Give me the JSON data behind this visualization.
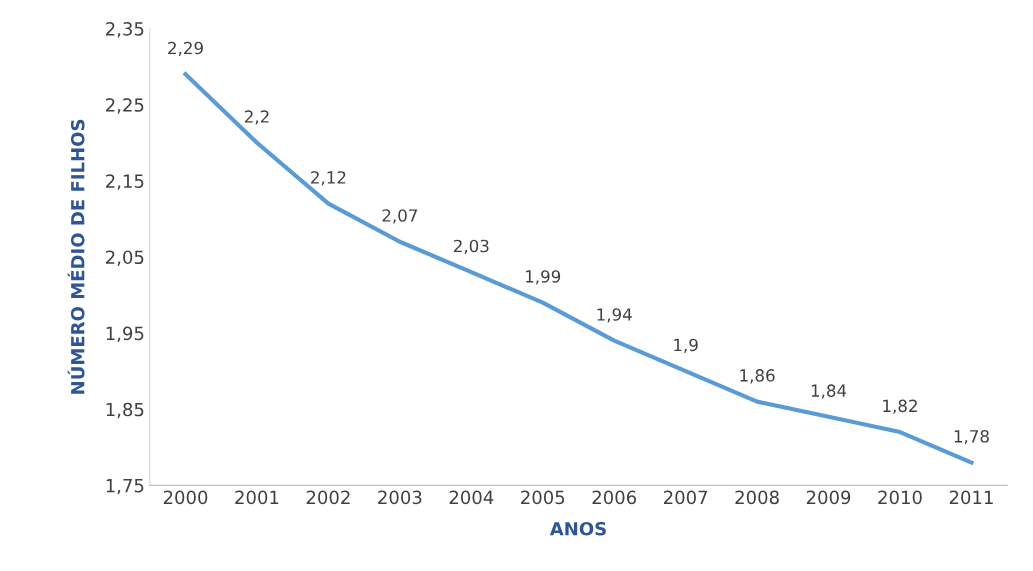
{
  "chart_data": {
    "type": "line",
    "xlabel": "ANOS",
    "ylabel": "NÚMERO MÉDIO DE FILHOS",
    "categories": [
      "2000",
      "2001",
      "2002",
      "2003",
      "2004",
      "2005",
      "2006",
      "2007",
      "2008",
      "2009",
      "2010",
      "2011"
    ],
    "series": [
      {
        "color": "#5b9bd5",
        "values": [
          2.29,
          2.2,
          2.12,
          2.07,
          2.03,
          1.99,
          1.94,
          1.9,
          1.86,
          1.84,
          1.82,
          1.78
        ],
        "value_labels": [
          "2,29",
          "2,2",
          "2,12",
          "2,07",
          "2,03",
          "1,99",
          "1,94",
          "1,9",
          "1,86",
          "1,84",
          "1,82",
          "1,78"
        ]
      }
    ],
    "ylim": [
      1.75,
      2.35
    ],
    "yticks": [
      {
        "value": 1.75,
        "label": "1,75"
      },
      {
        "value": 1.85,
        "label": "1,85"
      },
      {
        "value": 1.95,
        "label": "1,95"
      },
      {
        "value": 2.05,
        "label": "2,05"
      },
      {
        "value": 2.15,
        "label": "2,15"
      },
      {
        "value": 2.25,
        "label": "2,25"
      },
      {
        "value": 2.35,
        "label": "2,35"
      }
    ],
    "grid": false,
    "legend": false,
    "marker": "none",
    "line_style": "solid"
  }
}
